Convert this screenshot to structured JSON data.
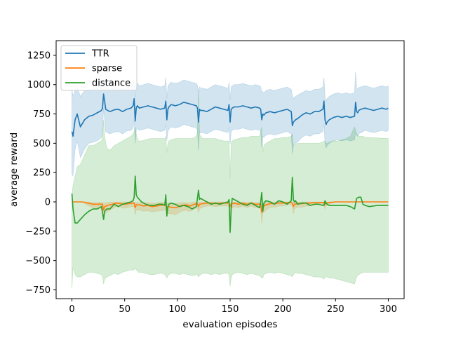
{
  "chart_data": {
    "type": "line",
    "title": "",
    "xlabel": "evaluation episodes",
    "ylabel": "average reward",
    "xlim": [
      -15,
      315
    ],
    "ylim": [
      -825,
      1375
    ],
    "xticks": [
      0,
      50,
      100,
      150,
      200,
      250,
      300
    ],
    "yticks": [
      -750,
      -500,
      -250,
      0,
      250,
      500,
      750,
      1000,
      1250
    ],
    "ytick_labels": [
      "−750",
      "−500",
      "−250",
      "0",
      "250",
      "500",
      "750",
      "1000",
      "1250"
    ],
    "grid": false,
    "legend_position": "upper-left",
    "series": [
      {
        "name": "TTR",
        "color": "#1f77b4",
        "band_color": "#1f77b4",
        "x": [
          0,
          1,
          3,
          5,
          8,
          12,
          16,
          20,
          24,
          28,
          29,
          30,
          31,
          32,
          34,
          36,
          40,
          44,
          48,
          52,
          56,
          58,
          59,
          60,
          61,
          62,
          64,
          68,
          72,
          76,
          80,
          84,
          88,
          89,
          90,
          91,
          92,
          94,
          98,
          102,
          106,
          110,
          114,
          118,
          119,
          120,
          121,
          122,
          124,
          128,
          132,
          136,
          140,
          144,
          148,
          149,
          150,
          151,
          152,
          154,
          158,
          162,
          166,
          170,
          174,
          178,
          179,
          180,
          181,
          182,
          184,
          188,
          192,
          196,
          200,
          204,
          208,
          209,
          210,
          211,
          212,
          214,
          218,
          222,
          226,
          230,
          234,
          238,
          239,
          240,
          241,
          242,
          244,
          248,
          252,
          256,
          260,
          264,
          268,
          269,
          270,
          271,
          272,
          274,
          278,
          282,
          286,
          290,
          294,
          298,
          300
        ],
        "y": [
          600,
          560,
          700,
          750,
          640,
          700,
          730,
          740,
          760,
          780,
          800,
          920,
          860,
          790,
          780,
          770,
          785,
          790,
          770,
          790,
          800,
          820,
          880,
          690,
          800,
          820,
          800,
          810,
          820,
          810,
          800,
          790,
          800,
          860,
          700,
          790,
          810,
          830,
          820,
          830,
          850,
          840,
          830,
          820,
          800,
          680,
          790,
          780,
          780,
          770,
          790,
          810,
          800,
          790,
          780,
          830,
          680,
          790,
          800,
          810,
          810,
          820,
          810,
          800,
          810,
          800,
          790,
          700,
          750,
          740,
          760,
          770,
          760,
          770,
          780,
          790,
          770,
          650,
          680,
          690,
          700,
          710,
          740,
          760,
          750,
          770,
          770,
          790,
          860,
          700,
          660,
          680,
          700,
          720,
          730,
          720,
          730,
          720,
          730,
          850,
          770,
          760,
          780,
          790,
          800,
          790,
          780,
          790,
          800,
          790,
          800
        ],
        "upper": [
          960,
          900,
          950,
          980,
          900,
          950,
          960,
          965,
          970,
          990,
          1010,
          1040,
          1020,
          980,
          970,
          960,
          975,
          980,
          960,
          975,
          990,
          1010,
          1060,
          880,
          990,
          1010,
          990,
          1000,
          1010,
          1000,
          990,
          980,
          990,
          1060,
          880,
          980,
          1000,
          1020,
          1010,
          1020,
          1040,
          1030,
          1020,
          1010,
          990,
          940,
          980,
          970,
          970,
          960,
          980,
          1000,
          990,
          980,
          970,
          1020,
          870,
          980,
          990,
          1000,
          1000,
          1010,
          1000,
          990,
          1000,
          990,
          980,
          940,
          940,
          930,
          950,
          960,
          950,
          960,
          970,
          980,
          960,
          910,
          880,
          890,
          900,
          910,
          930,
          950,
          940,
          960,
          960,
          980,
          1060,
          900,
          860,
          880,
          900,
          920,
          930,
          920,
          930,
          920,
          930,
          1110,
          970,
          960,
          975,
          980,
          990,
          980,
          970,
          980,
          990,
          980,
          990
        ],
        "lower": [
          240,
          220,
          450,
          520,
          380,
          450,
          500,
          510,
          520,
          550,
          590,
          800,
          700,
          600,
          590,
          580,
          595,
          600,
          580,
          605,
          610,
          630,
          700,
          500,
          610,
          630,
          610,
          620,
          630,
          620,
          610,
          600,
          610,
          660,
          520,
          600,
          620,
          640,
          630,
          640,
          660,
          650,
          640,
          630,
          610,
          440,
          600,
          590,
          590,
          580,
          600,
          620,
          610,
          600,
          590,
          640,
          490,
          600,
          610,
          620,
          620,
          630,
          620,
          610,
          620,
          610,
          600,
          460,
          560,
          550,
          570,
          580,
          570,
          580,
          590,
          600,
          580,
          410,
          480,
          490,
          500,
          510,
          550,
          570,
          560,
          580,
          580,
          600,
          660,
          500,
          460,
          480,
          500,
          520,
          530,
          520,
          530,
          520,
          530,
          590,
          570,
          560,
          580,
          590,
          610,
          600,
          590,
          600,
          610,
          600,
          610
        ]
      },
      {
        "name": "sparse",
        "color": "#ff7f0e",
        "band_color": "#ff7f0e",
        "x": [
          0,
          5,
          10,
          15,
          20,
          25,
          29,
          30,
          31,
          34,
          38,
          42,
          46,
          50,
          54,
          58,
          59,
          60,
          61,
          64,
          68,
          72,
          76,
          80,
          84,
          88,
          89,
          90,
          91,
          94,
          98,
          100,
          104,
          108,
          112,
          116,
          119,
          120,
          121,
          124,
          128,
          132,
          136,
          140,
          144,
          148,
          149,
          150,
          151,
          154,
          158,
          162,
          166,
          170,
          174,
          178,
          179,
          180,
          181,
          184,
          188,
          192,
          196,
          200,
          204,
          208,
          209,
          210,
          211,
          214,
          218,
          222,
          226,
          230,
          234,
          238,
          239,
          240,
          241,
          244,
          250,
          260,
          270,
          280,
          290,
          300
        ],
        "y": [
          0,
          0,
          0,
          -10,
          -20,
          -20,
          -20,
          -70,
          -40,
          -30,
          -20,
          -10,
          -15,
          -20,
          -15,
          -10,
          -10,
          -50,
          -25,
          -25,
          -35,
          -30,
          -40,
          -35,
          -30,
          -25,
          -25,
          -60,
          -40,
          -45,
          -50,
          -45,
          -30,
          -25,
          -35,
          -20,
          -15,
          -40,
          -20,
          -15,
          -10,
          -10,
          -15,
          -10,
          -10,
          -10,
          -10,
          -40,
          -20,
          -10,
          -20,
          -10,
          -20,
          -10,
          -20,
          -20,
          -20,
          -90,
          -40,
          -25,
          -15,
          -15,
          -10,
          -10,
          -5,
          -5,
          -10,
          -40,
          -20,
          -15,
          -15,
          -10,
          -10,
          -5,
          -5,
          -5,
          -5,
          -20,
          -10,
          -5,
          0,
          0,
          0,
          0,
          0,
          0
        ],
        "upper": [
          0,
          0,
          0,
          0,
          -5,
          -5,
          -5,
          -10,
          -10,
          -5,
          0,
          0,
          0,
          0,
          0,
          0,
          0,
          -10,
          -5,
          -5,
          -10,
          -5,
          -10,
          -10,
          -5,
          -5,
          -5,
          -15,
          -10,
          -10,
          -15,
          -10,
          -5,
          -5,
          -10,
          0,
          0,
          -10,
          0,
          0,
          0,
          0,
          0,
          0,
          0,
          0,
          0,
          -10,
          -5,
          0,
          -5,
          0,
          -5,
          0,
          -5,
          -5,
          -5,
          -20,
          -10,
          -5,
          0,
          0,
          0,
          0,
          0,
          0,
          0,
          -10,
          -5,
          0,
          0,
          0,
          0,
          0,
          0,
          0,
          0,
          -5,
          0,
          0,
          0,
          0,
          0,
          0,
          0,
          0
        ],
        "lower": [
          0,
          0,
          0,
          -30,
          -50,
          -50,
          -60,
          -150,
          -100,
          -80,
          -60,
          -40,
          -45,
          -55,
          -45,
          -40,
          -40,
          -110,
          -70,
          -70,
          -80,
          -75,
          -85,
          -80,
          -75,
          -70,
          -70,
          -130,
          -100,
          -100,
          -110,
          -100,
          -80,
          -70,
          -80,
          -60,
          -50,
          -90,
          -60,
          -45,
          -35,
          -35,
          -40,
          -35,
          -35,
          -35,
          -40,
          -100,
          -60,
          -40,
          -50,
          -35,
          -50,
          -35,
          -50,
          -50,
          -55,
          -180,
          -100,
          -70,
          -45,
          -45,
          -35,
          -35,
          -25,
          -25,
          -35,
          -100,
          -60,
          -45,
          -45,
          -35,
          -35,
          -25,
          -25,
          -25,
          -25,
          -60,
          -35,
          -20,
          0,
          0,
          0,
          0,
          0,
          0
        ]
      },
      {
        "name": "distance",
        "color": "#2ca02c",
        "band_color": "#2ca02c",
        "x": [
          0,
          1,
          3,
          5,
          8,
          12,
          16,
          20,
          24,
          28,
          29,
          30,
          31,
          33,
          36,
          40,
          44,
          48,
          52,
          56,
          58,
          59,
          60,
          61,
          62,
          63,
          64,
          66,
          70,
          74,
          78,
          82,
          86,
          88,
          89,
          90,
          91,
          92,
          94,
          98,
          102,
          106,
          110,
          114,
          118,
          119,
          120,
          121,
          122,
          124,
          128,
          132,
          136,
          140,
          144,
          148,
          149,
          150,
          151,
          152,
          154,
          158,
          162,
          166,
          170,
          174,
          178,
          179,
          180,
          181,
          182,
          184,
          188,
          192,
          196,
          200,
          204,
          208,
          209,
          210,
          211,
          212,
          214,
          218,
          222,
          226,
          230,
          234,
          238,
          239,
          240,
          241,
          242,
          244,
          248,
          252,
          256,
          260,
          264,
          268,
          270,
          272,
          274,
          276,
          278,
          282,
          290,
          300
        ],
        "y": [
          70,
          -60,
          -180,
          -180,
          -150,
          -110,
          -80,
          -60,
          -60,
          -40,
          -90,
          -150,
          -80,
          -60,
          -60,
          -20,
          -40,
          -20,
          -10,
          0,
          10,
          40,
          220,
          60,
          40,
          30,
          20,
          0,
          -20,
          -30,
          -30,
          -20,
          -20,
          -30,
          60,
          -120,
          -40,
          -20,
          -10,
          -20,
          -40,
          -30,
          -40,
          -60,
          -40,
          30,
          100,
          20,
          30,
          20,
          0,
          -20,
          -10,
          -20,
          -10,
          0,
          20,
          -260,
          -60,
          30,
          20,
          0,
          -20,
          -30,
          -10,
          -30,
          -50,
          0,
          80,
          -80,
          -10,
          10,
          0,
          -20,
          10,
          0,
          -20,
          10,
          210,
          20,
          0,
          10,
          -20,
          -10,
          -10,
          -30,
          -20,
          -20,
          -30,
          -30,
          10,
          -10,
          -20,
          -30,
          -30,
          -30,
          -30,
          -30,
          -40,
          -60,
          30,
          40,
          40,
          -20,
          -30,
          -40,
          -30,
          -30
        ],
        "upper": [
          60,
          140,
          220,
          300,
          320,
          400,
          480,
          480,
          500,
          520,
          560,
          700,
          560,
          460,
          440,
          480,
          500,
          520,
          540,
          560,
          580,
          600,
          640,
          580,
          540,
          520,
          520,
          520,
          530,
          540,
          540,
          540,
          540,
          540,
          560,
          420,
          500,
          520,
          530,
          540,
          540,
          540,
          540,
          540,
          560,
          600,
          960,
          580,
          560,
          540,
          540,
          540,
          540,
          530,
          520,
          520,
          520,
          200,
          500,
          520,
          530,
          540,
          550,
          550,
          560,
          560,
          560,
          600,
          640,
          420,
          480,
          500,
          520,
          540,
          540,
          550,
          550,
          560,
          580,
          480,
          480,
          490,
          500,
          500,
          500,
          500,
          500,
          500,
          510,
          520,
          520,
          500,
          500,
          510,
          520,
          520,
          530,
          540,
          560,
          640,
          580,
          560,
          560,
          560,
          550,
          550,
          545,
          540
        ],
        "lower": [
          -740,
          -560,
          -620,
          -640,
          -640,
          -620,
          -600,
          -600,
          -610,
          -620,
          -640,
          -700,
          -660,
          -640,
          -630,
          -610,
          -620,
          -600,
          -590,
          -580,
          -580,
          -580,
          -560,
          -580,
          -590,
          -600,
          -600,
          -600,
          -610,
          -620,
          -620,
          -610,
          -610,
          -620,
          -630,
          -650,
          -630,
          -620,
          -610,
          -610,
          -620,
          -610,
          -620,
          -630,
          -620,
          -620,
          -640,
          -630,
          -620,
          -610,
          -610,
          -620,
          -610,
          -620,
          -610,
          -610,
          -620,
          -720,
          -650,
          -620,
          -610,
          -600,
          -610,
          -620,
          -610,
          -620,
          -630,
          -640,
          -650,
          -650,
          -620,
          -610,
          -600,
          -610,
          -600,
          -610,
          -620,
          -630,
          -640,
          -620,
          -610,
          -600,
          -610,
          -610,
          -620,
          -630,
          -640,
          -640,
          -650,
          -660,
          -640,
          -640,
          -640,
          -650,
          -650,
          -660,
          -670,
          -680,
          -690,
          -700,
          -640,
          -620,
          -610,
          -600,
          -600,
          -600,
          -600,
          -600
        ]
      }
    ]
  }
}
